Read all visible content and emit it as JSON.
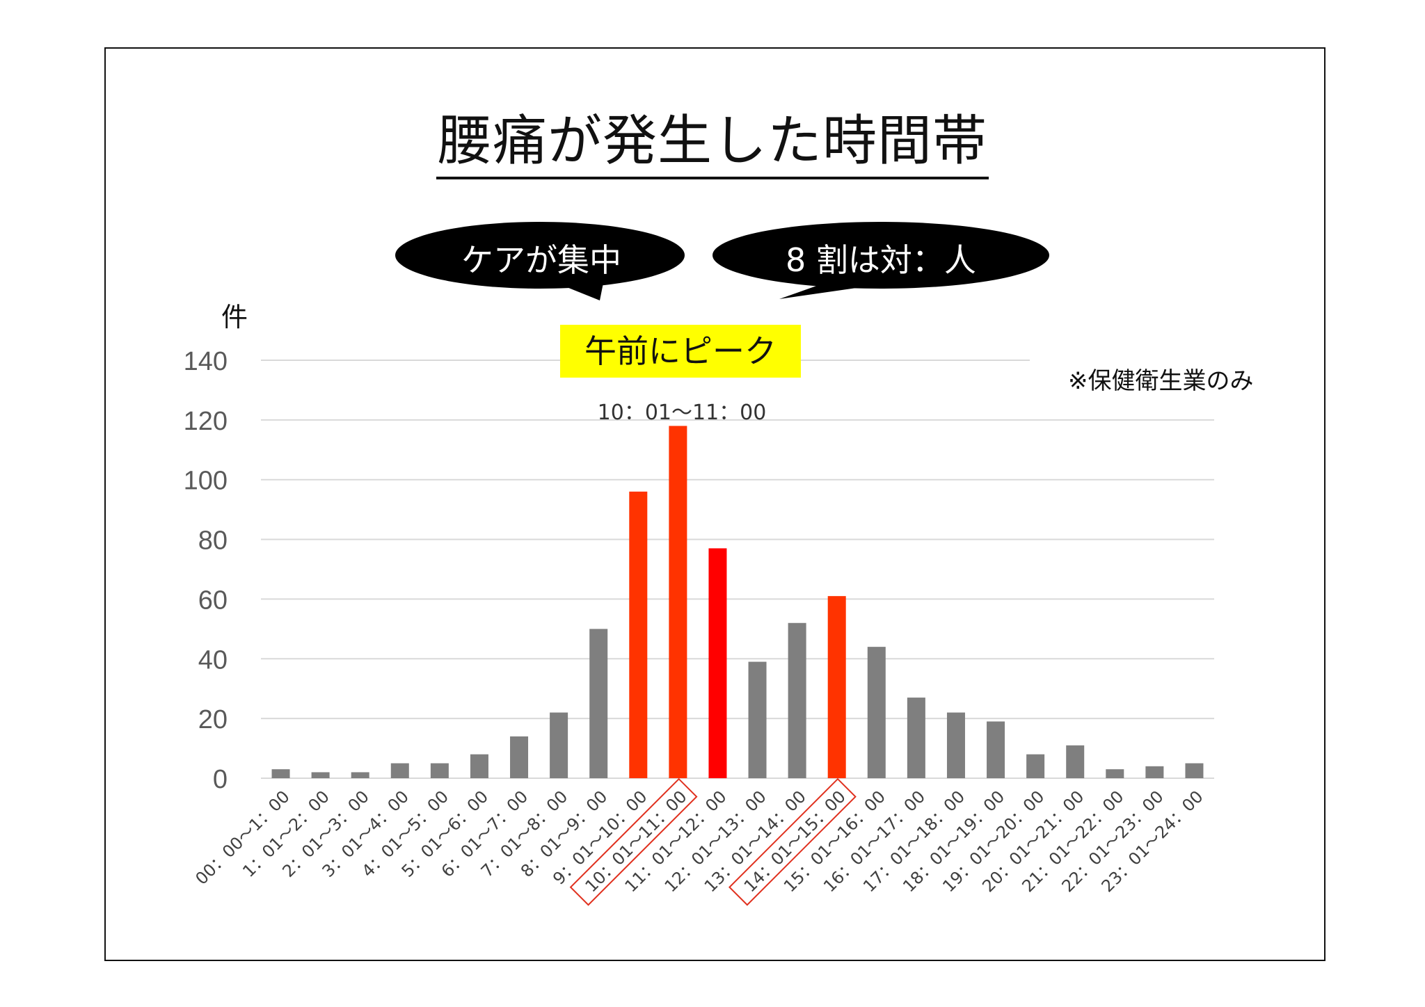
{
  "page": {
    "title": "腰痛が発生した時間帯",
    "bubble_left": "ケアが集中",
    "bubble_right": "8 割は対：人",
    "unit_label": "件",
    "peak_badge": "午前にピーク",
    "peak_label": "10：01〜11：00",
    "note": "※保健衛生業のみ"
  },
  "colors": {
    "gray_bar": "#7f7f7f",
    "orange_bar": "#ff3300",
    "red_bar": "#ff0000",
    "highlight_box": "#ffff00",
    "outline_red": "#e0301e"
  },
  "chart_data": {
    "type": "bar",
    "ylabel": "件",
    "ylim": [
      0,
      140
    ],
    "yticks": [
      0,
      20,
      40,
      60,
      80,
      100,
      120,
      140
    ],
    "grid": true,
    "categories": [
      "00：00〜1：00",
      "1：01〜2：00",
      "2：01〜3：00",
      "3：01〜4：00",
      "4：01〜5：00",
      "5：01〜6：00",
      "6：01〜7：00",
      "7：01〜8：00",
      "8：01〜9：00",
      "9：01〜10：00",
      "10：01〜11：00",
      "11：01〜12：00",
      "12：01〜13：00",
      "13：01〜14：00",
      "14：01〜15：00",
      "15：01〜16：00",
      "16：01〜17：00",
      "17：01〜18：00",
      "18：01〜19：00",
      "19：01〜20：00",
      "20：01〜21：00",
      "21：01〜22：00",
      "22：01〜23：00",
      "23：01〜24：00"
    ],
    "values": [
      3,
      2,
      2,
      5,
      5,
      8,
      14,
      22,
      50,
      96,
      118,
      77,
      39,
      52,
      61,
      44,
      27,
      22,
      19,
      8,
      11,
      3,
      4,
      5
    ],
    "bar_colors": [
      "gray",
      "gray",
      "gray",
      "gray",
      "gray",
      "gray",
      "gray",
      "gray",
      "gray",
      "orange",
      "orange",
      "red",
      "gray",
      "gray",
      "orange",
      "gray",
      "gray",
      "gray",
      "gray",
      "gray",
      "gray",
      "gray",
      "gray",
      "gray"
    ],
    "outlined_categories": [
      "10：01〜11：00",
      "14：01〜15：00"
    ]
  }
}
